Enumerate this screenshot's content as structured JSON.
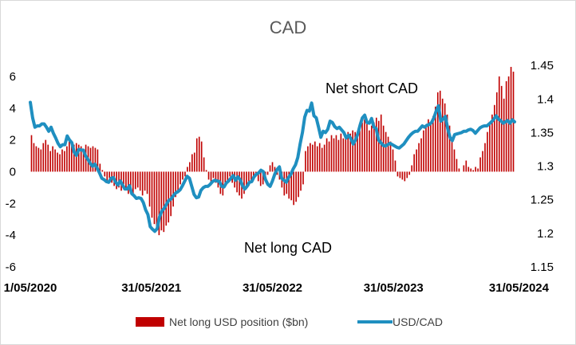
{
  "chart_data": {
    "type": "bar+line",
    "title": "CAD",
    "x_tick_labels": [
      "1/05/2020",
      "31/05/2021",
      "31/05/2022",
      "31/05/2023",
      "31/05/2024"
    ],
    "y_left": {
      "ticks": [
        "6",
        "4",
        "2",
        "0",
        "-2",
        "-4",
        "-6"
      ],
      "lim": [
        -6,
        7.2
      ]
    },
    "y_right": {
      "ticks": [
        "1.45",
        "1.4",
        "1.35",
        "1.3",
        "1.25",
        "1.2",
        "1.15"
      ],
      "lim": [
        1.15,
        1.462
      ]
    },
    "annotations": {
      "top": "Net short CAD",
      "bottom": "Net long CAD"
    },
    "colors": {
      "bars": "#c00000",
      "line": "#1f8fc0"
    },
    "legend_position": "bottom",
    "series": [
      {
        "name": "Net long USD position ($bn)",
        "type": "bar",
        "values": [
          2.3,
          1.8,
          1.6,
          1.5,
          1.4,
          1.8,
          2.0,
          1.7,
          1.3,
          1.6,
          1.4,
          1.2,
          1.1,
          1.4,
          1.3,
          1.6,
          1.9,
          1.8,
          1.7,
          1.8,
          1.7,
          1.6,
          1.4,
          1.7,
          1.6,
          1.5,
          1.6,
          1.5,
          1.4,
          0.5,
          0.1,
          -0.3,
          -0.6,
          -0.4,
          -0.7,
          -0.9,
          -1.1,
          -1.0,
          -1.2,
          -0.8,
          -1.1,
          -1.4,
          -1.3,
          -1.5,
          -1.1,
          -1.0,
          -1.2,
          -1.5,
          -1.2,
          -1.4,
          -2.2,
          -2.9,
          -3.3,
          -3.6,
          -4.0,
          -3.7,
          -3.8,
          -3.4,
          -3.2,
          -2.8,
          -2.2,
          -1.6,
          -1.3,
          -0.8,
          -0.5,
          -0.3,
          0.3,
          0.6,
          1.1,
          1.2,
          2.1,
          2.2,
          1.9,
          0.9,
          0.1,
          -0.5,
          -0.8,
          -0.4,
          -0.7,
          -1.0,
          -1.4,
          -1.5,
          -0.9,
          -0.6,
          -0.3,
          -0.7,
          -1.0,
          -1.3,
          -1.5,
          -1.7,
          -1.4,
          -1.1,
          -0.9,
          -0.6,
          -0.4,
          -0.3,
          -0.6,
          -0.9,
          -0.8,
          -0.5,
          -0.2,
          0.4,
          0.6,
          0.3,
          -0.2,
          -0.5,
          -1.0,
          -1.5,
          -1.4,
          -1.7,
          -1.8,
          -2.1,
          -1.9,
          -1.6,
          -1.2,
          -0.8,
          1.3,
          1.6,
          1.8,
          1.7,
          1.9,
          1.6,
          1.8,
          1.5,
          1.7,
          2.1,
          1.9,
          2.3,
          2.1,
          2.3,
          2.0,
          2.4,
          2.1,
          2.3,
          2.5,
          2.4,
          2.6,
          2.5,
          2.3,
          2.6,
          3.1,
          3.3,
          3.0,
          2.6,
          2.9,
          3.1,
          3.4,
          3.2,
          3.6,
          2.9,
          2.5,
          2.2,
          1.9,
          1.4,
          0.7,
          -0.3,
          -0.4,
          -0.5,
          -0.6,
          -0.4,
          -0.2,
          0.4,
          1.1,
          1.4,
          1.8,
          2.1,
          2.6,
          2.9,
          3.3,
          3.1,
          3.5,
          4.1,
          5.0,
          5.1,
          4.6,
          4.3,
          3.6,
          2.9,
          2.0,
          1.4,
          0.8,
          0.2,
          0.0,
          0.4,
          0.7,
          0.3,
          0.2,
          0.1,
          0.3,
          0.2,
          0.9,
          1.3,
          1.8,
          2.5,
          3.1,
          3.6,
          4.2,
          5.0,
          6.0,
          5.4,
          4.6,
          5.7,
          6.0,
          6.6,
          6.3
        ]
      },
      {
        "name": "USD/CAD",
        "type": "line",
        "values": [
          1.395,
          1.372,
          1.358,
          1.36,
          1.36,
          1.363,
          1.363,
          1.358,
          1.352,
          1.358,
          1.349,
          1.342,
          1.334,
          1.329,
          1.332,
          1.332,
          1.345,
          1.339,
          1.335,
          1.321,
          1.316,
          1.325,
          1.324,
          1.324,
          1.315,
          1.31,
          1.304,
          1.3,
          1.303,
          1.297,
          1.29,
          1.282,
          1.28,
          1.277,
          1.276,
          1.282,
          1.283,
          1.276,
          1.272,
          1.278,
          1.272,
          1.266,
          1.266,
          1.271,
          1.259,
          1.256,
          1.252,
          1.253,
          1.252,
          1.246,
          1.235,
          1.228,
          1.21,
          1.206,
          1.203,
          1.207,
          1.224,
          1.233,
          1.237,
          1.243,
          1.249,
          1.251,
          1.256,
          1.26,
          1.262,
          1.265,
          1.271,
          1.278,
          1.285,
          1.282,
          1.27,
          1.258,
          1.253,
          1.254,
          1.264,
          1.268,
          1.27,
          1.27,
          1.273,
          1.277,
          1.279,
          1.278,
          1.277,
          1.27,
          1.269,
          1.275,
          1.278,
          1.282,
          1.286,
          1.279,
          1.284,
          1.28,
          1.271,
          1.266,
          1.27,
          1.276,
          1.277,
          1.284,
          1.288,
          1.29,
          1.294,
          1.292,
          1.28,
          1.273,
          1.27,
          1.278,
          1.288,
          1.295,
          1.299,
          1.282,
          1.279,
          1.276,
          1.283,
          1.288,
          1.296,
          1.302,
          1.313,
          1.333,
          1.35,
          1.373,
          1.383,
          1.382,
          1.394,
          1.375,
          1.372,
          1.358,
          1.343,
          1.352,
          1.35,
          1.355,
          1.367,
          1.365,
          1.359,
          1.356,
          1.358,
          1.354,
          1.35,
          1.342,
          1.346,
          1.341,
          1.333,
          1.339,
          1.348,
          1.361,
          1.372,
          1.376,
          1.365,
          1.364,
          1.371,
          1.358,
          1.356,
          1.339,
          1.335,
          1.331,
          1.33,
          1.332,
          1.334,
          1.332,
          1.33,
          1.328,
          1.327,
          1.33,
          1.333,
          1.338,
          1.343,
          1.347,
          1.35,
          1.352,
          1.352,
          1.356,
          1.36,
          1.358,
          1.361,
          1.362,
          1.365,
          1.372,
          1.382,
          1.39,
          1.367,
          1.37,
          1.374,
          1.356,
          1.343,
          1.338,
          1.347,
          1.348,
          1.349,
          1.35,
          1.352,
          1.352,
          1.354,
          1.355,
          1.353,
          1.349,
          1.353,
          1.357,
          1.359,
          1.36,
          1.36,
          1.363,
          1.366,
          1.37,
          1.375,
          1.37,
          1.368,
          1.364,
          1.366,
          1.368,
          1.364,
          1.369,
          1.366
        ]
      }
    ]
  }
}
